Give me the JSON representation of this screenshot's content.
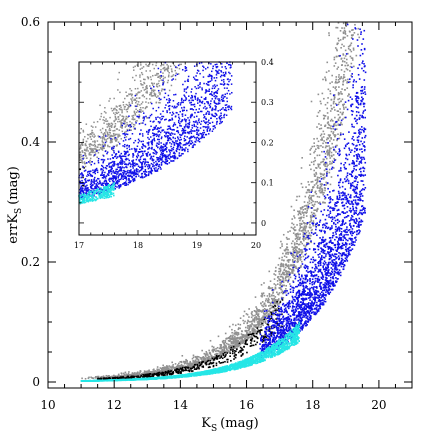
{
  "chart_data": [
    {
      "type": "scatter",
      "title": "",
      "xlabel": "K",
      "xlabel_sub": "S",
      "xlabel_unit": "(mag)",
      "ylabel": "errK",
      "ylabel_sub": "S",
      "ylabel_unit": "(mag)",
      "xlim": [
        10,
        21
      ],
      "ylim": [
        -0.01,
        0.6
      ],
      "x_ticks": [
        "10",
        "12",
        "14",
        "16",
        "18",
        "20"
      ],
      "y_ticks": [
        "0",
        "0.2",
        "0.4",
        "0.6"
      ],
      "grid": false,
      "legend": "none",
      "series": [
        {
          "color": "#909090",
          "x_range": [
            11.0,
            20.0
          ],
          "description_values": "upper envelope",
          "curve_params": {
            "a": 0.004,
            "b": 0.0034,
            "c": 0.62
          }
        },
        {
          "color": "#000000",
          "x_range": [
            11.5,
            17.0
          ]
        },
        {
          "color": "#1010e8",
          "x_range": [
            16.5,
            19.6
          ]
        },
        {
          "color": "#26e6e6",
          "x_range": [
            11.0,
            17.6
          ]
        }
      ]
    },
    {
      "type": "scatter",
      "title": "",
      "xlim": [
        17,
        20
      ],
      "ylim": [
        -0.03,
        0.4
      ],
      "x_ticks": [
        "17",
        "18",
        "19",
        "20"
      ],
      "y_ticks": [
        "0",
        "0.1",
        "0.2",
        "0.3",
        "0.4"
      ],
      "grid": false,
      "legend": "none"
    }
  ]
}
